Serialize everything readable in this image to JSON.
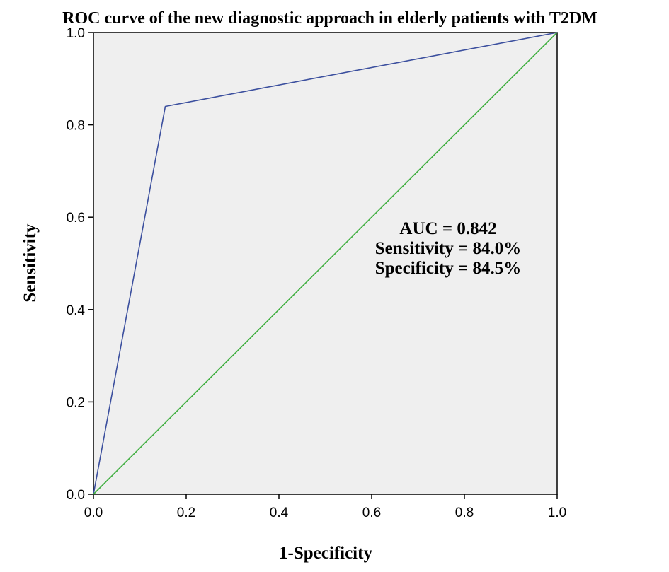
{
  "chart_data": {
    "type": "line",
    "title": "ROC curve of the new diagnostic approach in elderly patients with T2DM",
    "xlabel": "1-Specificity",
    "ylabel": "Sensitivity",
    "xlim": [
      0,
      1
    ],
    "ylim": [
      0,
      1
    ],
    "x_ticks": [
      "0.0",
      "0.2",
      "0.4",
      "0.6",
      "0.8",
      "1.0"
    ],
    "y_ticks": [
      "0.0",
      "0.2",
      "0.4",
      "0.6",
      "0.8",
      "1.0"
    ],
    "grid": false,
    "legend": "none",
    "series": [
      {
        "x": [
          0.0,
          0.155,
          1.0
        ],
        "y": [
          0.0,
          0.84,
          1.0
        ],
        "color": "#3b4f9e"
      },
      {
        "x": [
          0.0,
          1.0
        ],
        "y": [
          0.0,
          1.0
        ],
        "color": "#3fae3f"
      }
    ],
    "annotations": [
      "AUC = 0.842",
      "Sensitivity = 84.0%",
      "Specificity = 84.5%"
    ],
    "plot_background": "#efefef"
  }
}
